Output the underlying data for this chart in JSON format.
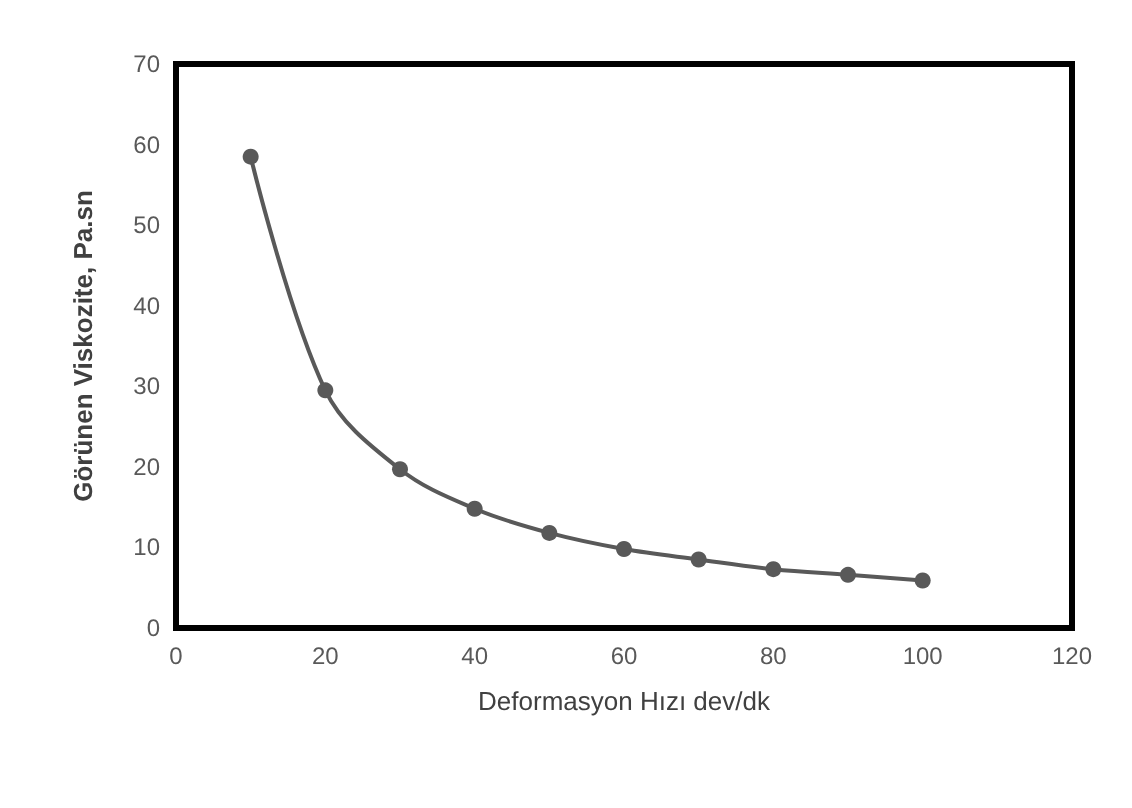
{
  "chart_data": {
    "type": "line",
    "xlabel": "Deformasyon Hızı dev/dk",
    "ylabel": "Görünen Viskozite, Pa.sn",
    "x": [
      10,
      20,
      30,
      40,
      50,
      60,
      70,
      80,
      90,
      100
    ],
    "series": [
      {
        "color": "#595959",
        "values": [
          58.5,
          29.5,
          19.7,
          14.8,
          11.8,
          9.8,
          8.5,
          7.3,
          6.6,
          5.9
        ]
      }
    ],
    "xlim": [
      0,
      120
    ],
    "xticks": [
      0,
      20,
      40,
      60,
      80,
      100,
      120
    ],
    "ylim": [
      0,
      70
    ],
    "yticks": [
      0,
      10,
      20,
      30,
      40,
      50,
      60,
      70
    ],
    "grid": false,
    "marker": "circle",
    "line_style": "solid"
  }
}
